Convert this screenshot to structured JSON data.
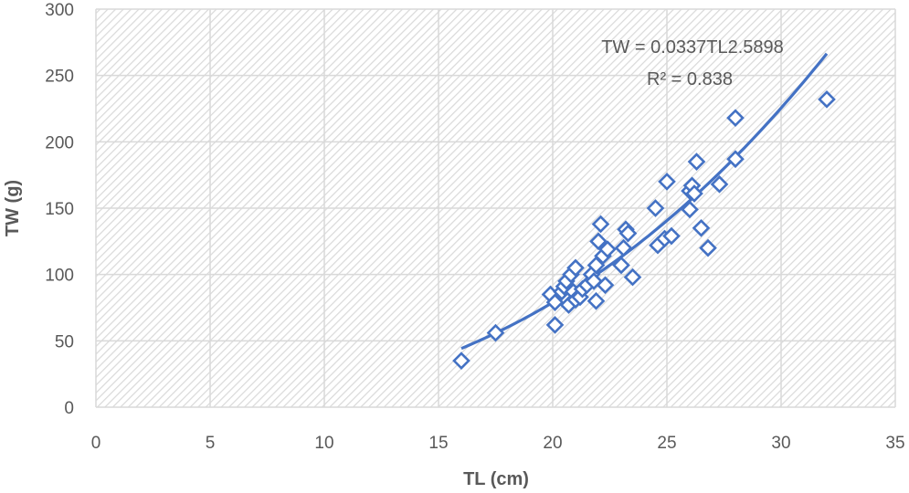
{
  "chart_data": {
    "type": "scatter",
    "title": "",
    "xlabel": "TL (cm)",
    "ylabel": "TW (g)",
    "xlim": [
      0,
      35
    ],
    "ylim": [
      0,
      300
    ],
    "xticks": [
      "0",
      "5",
      "10",
      "15",
      "20",
      "25",
      "30",
      "35"
    ],
    "yticks": [
      "0",
      "50",
      "100",
      "150",
      "200",
      "250",
      "300"
    ],
    "grid": true,
    "legend": "none",
    "series": [
      {
        "marker": "diamond-open",
        "color": "#4472C4",
        "points": [
          [
            16.0,
            35
          ],
          [
            17.5,
            56
          ],
          [
            19.9,
            85
          ],
          [
            20.1,
            79
          ],
          [
            20.1,
            62
          ],
          [
            20.4,
            87
          ],
          [
            20.5,
            91
          ],
          [
            20.6,
            95
          ],
          [
            20.7,
            77
          ],
          [
            20.8,
            100
          ],
          [
            20.9,
            87
          ],
          [
            21.0,
            105
          ],
          [
            21.0,
            81
          ],
          [
            21.2,
            83
          ],
          [
            21.3,
            89
          ],
          [
            21.5,
            92
          ],
          [
            21.7,
            100
          ],
          [
            21.8,
            95
          ],
          [
            21.9,
            80
          ],
          [
            21.9,
            107
          ],
          [
            22.0,
            125
          ],
          [
            22.1,
            138
          ],
          [
            22.2,
            114
          ],
          [
            22.3,
            92
          ],
          [
            22.4,
            119
          ],
          [
            23.0,
            107
          ],
          [
            23.1,
            120
          ],
          [
            23.2,
            134
          ],
          [
            23.3,
            131
          ],
          [
            23.5,
            98
          ],
          [
            24.5,
            150
          ],
          [
            24.6,
            122
          ],
          [
            24.9,
            127
          ],
          [
            25.0,
            170
          ],
          [
            25.2,
            129
          ],
          [
            26.0,
            163
          ],
          [
            26.0,
            149
          ],
          [
            26.1,
            167
          ],
          [
            26.2,
            161
          ],
          [
            26.3,
            185
          ],
          [
            26.5,
            135
          ],
          [
            26.8,
            120
          ],
          [
            27.3,
            168
          ],
          [
            28.0,
            218
          ],
          [
            28.0,
            187
          ],
          [
            32.0,
            232
          ]
        ]
      }
    ],
    "trendline": {
      "type": "power",
      "coefficient": 0.0337,
      "exponent": 2.5898,
      "x_range": [
        16,
        32
      ],
      "color": "#4472C4"
    },
    "annotations": {
      "equation": "TW = 0.0337TL2.5898",
      "r_squared": "R² = 0.838"
    }
  }
}
